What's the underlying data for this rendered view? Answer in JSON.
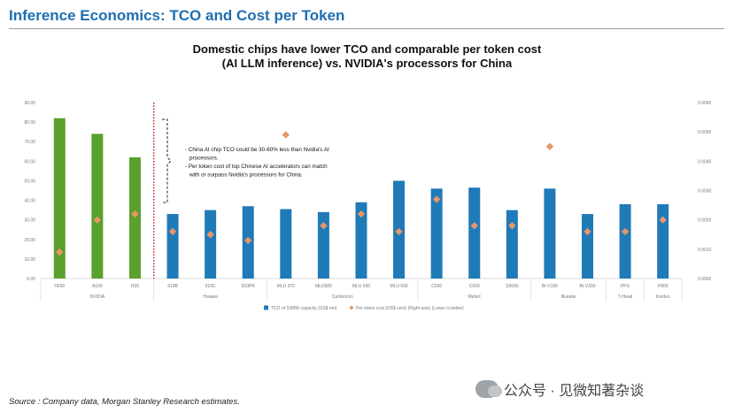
{
  "header": {
    "title": "Inference Economics: TCO and Cost per Token"
  },
  "chart_title_line1": "Domestic chips have lower TCO and comparable per token cost",
  "chart_title_line2": "(AI LLM inference) vs. NVIDIA's processors for China",
  "source_note": "Source : Company data, Morgan Stanley Research estimates.",
  "watermark": {
    "text": "公众号 · 见微知著杂谈",
    "icon": "wechat-icon"
  },
  "annotation": {
    "lines": [
      "- China AI chip TCO could be 30-60% less than Nvidia's AI",
      "processors.",
      "- Per token cost of top Chinese AI accelerators can match",
      "with or surpass Nvidia's processors for China."
    ]
  },
  "colors": {
    "nvidia_bar": "#5aa02c",
    "domestic_bar": "#1f7ab8",
    "marker": "#e8966a",
    "divider": "#c00000"
  },
  "chart_data": {
    "type": "bar",
    "categories": [
      "H200",
      "A100",
      "H20",
      "910B",
      "910C",
      "910PR",
      "MLU 370",
      "MLU580",
      "MLU 590",
      "MLU 690",
      "C500",
      "C600",
      "S5000",
      "BI-V100",
      "BI-V200",
      "PPU",
      "P800"
    ],
    "groups": [
      {
        "name": "NVIDIA",
        "start": 0,
        "end": 2
      },
      {
        "name": "Huawei",
        "start": 3,
        "end": 5
      },
      {
        "name": "Cambricon",
        "start": 6,
        "end": 9
      },
      {
        "name": "MetaX",
        "start": 10,
        "end": 12
      },
      {
        "name": "Illuvatar",
        "start": 13,
        "end": 14
      },
      {
        "name": "T-Head",
        "start": 15,
        "end": 15
      },
      {
        "name": "Kunlun",
        "start": 16,
        "end": 16
      }
    ],
    "series": [
      {
        "name": "TCO of 10MW capacity (US$ mn)",
        "axis": "left",
        "type": "bar",
        "values": [
          82,
          74,
          62,
          33,
          35,
          37,
          35.5,
          34,
          39,
          50,
          46,
          46.5,
          35,
          46,
          33,
          38,
          38
        ]
      },
      {
        "name": "Per token cost (US$ cent) (Right-axis) (Lower is better)",
        "axis": "right",
        "type": "scatter",
        "values": [
          0.0009,
          0.002,
          0.0022,
          0.0016,
          0.0015,
          0.0013,
          0.0049,
          0.0018,
          0.0022,
          0.0016,
          0.0027,
          0.0018,
          0.0018,
          0.0045,
          0.0016,
          0.0016,
          0.002
        ]
      }
    ],
    "ylim_left": [
      0,
      90
    ],
    "ylim_right": [
      0,
      0.006
    ],
    "yticks_left": [
      "0.00",
      "10.00",
      "20.00",
      "30.00",
      "40.00",
      "50.00",
      "60.00",
      "70.00",
      "80.00",
      "90.00"
    ],
    "yticks_right": [
      "0.0000",
      "0.0010",
      "0.0020",
      "0.0030",
      "0.0040",
      "0.0050",
      "0.0060"
    ],
    "legend_position": "bottom"
  }
}
